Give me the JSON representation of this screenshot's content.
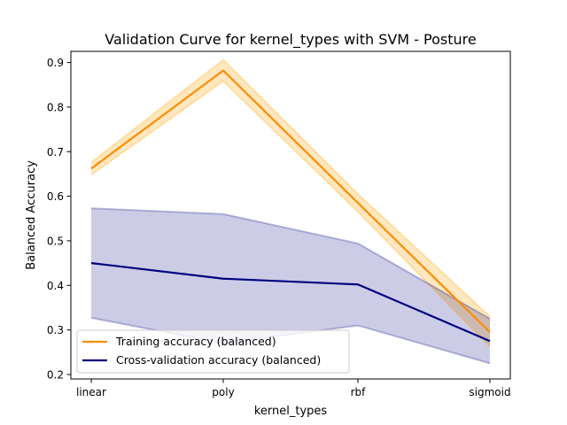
{
  "chart_data": {
    "type": "line",
    "title": "Validation Curve for kernel_types with SVM - Posture",
    "xlabel": "kernel_types",
    "ylabel": "Balanced Accuracy",
    "categories": [
      "linear",
      "poly",
      "rbf",
      "sigmoid"
    ],
    "ylim": [
      0.19,
      0.925
    ],
    "yticks": [
      0.2,
      0.3,
      0.4,
      0.5,
      0.6,
      0.7,
      0.8,
      0.9
    ],
    "ytick_labels": [
      "0.2",
      "0.3",
      "0.4",
      "0.5",
      "0.6",
      "0.7",
      "0.8",
      "0.9"
    ],
    "grid": false,
    "legend_position": "lower-left",
    "series": [
      {
        "name": "Training accuracy (balanced)",
        "color": "#ff8c00",
        "band_color": "#ffa500",
        "values": [
          0.662,
          0.882,
          0.585,
          0.295
        ],
        "band_lower": [
          0.648,
          0.858,
          0.565,
          0.262
        ],
        "band_upper": [
          0.676,
          0.906,
          0.605,
          0.33
        ]
      },
      {
        "name": "Cross-validation accuracy (balanced)",
        "color": "#000080",
        "band_color": "#000080",
        "values": [
          0.45,
          0.415,
          0.402,
          0.275
        ],
        "band_lower": [
          0.327,
          0.27,
          0.31,
          0.225
        ],
        "band_upper": [
          0.573,
          0.56,
          0.494,
          0.325
        ]
      }
    ]
  }
}
